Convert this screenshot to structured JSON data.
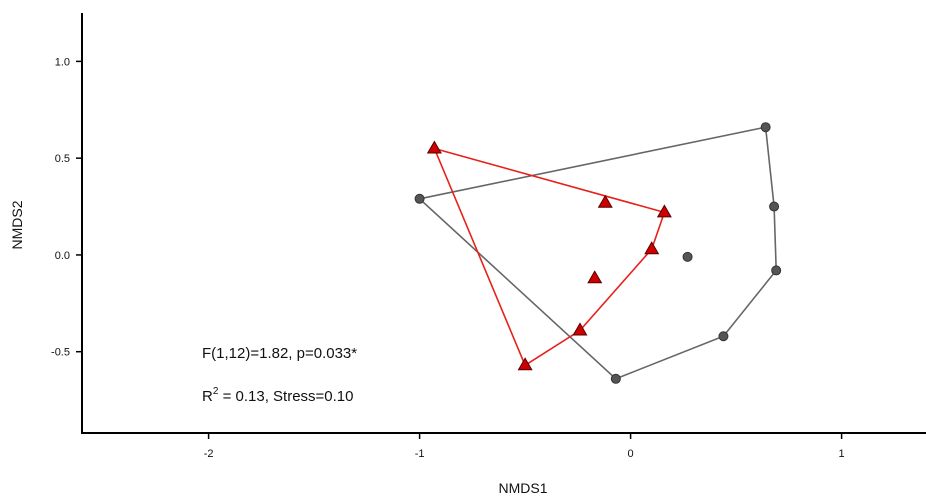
{
  "chart_data": {
    "type": "scatter",
    "title": "",
    "xlabel": "NMDS1",
    "ylabel": "NMDS2",
    "xlim": [
      -2.6,
      1.4
    ],
    "ylim": [
      -0.92,
      1.25
    ],
    "xticks": [
      -2,
      -1,
      0,
      1
    ],
    "yticks": [
      -0.5,
      0.0,
      0.5,
      1.0
    ],
    "xtick_labels": [
      "-2",
      "-1",
      "0",
      "1"
    ],
    "ytick_labels": [
      "-0.5",
      "0.0",
      "0.5",
      "1.0"
    ],
    "grid": false,
    "series": [
      {
        "marker": "circle",
        "color": "#666666",
        "fill": "#555555",
        "points": [
          {
            "x": -1.0,
            "y": 0.29
          },
          {
            "x": 0.64,
            "y": 0.66
          },
          {
            "x": 0.68,
            "y": 0.25
          },
          {
            "x": 0.69,
            "y": -0.08
          },
          {
            "x": 0.44,
            "y": -0.42
          },
          {
            "x": -0.07,
            "y": -0.64
          },
          {
            "x": 0.27,
            "y": -0.01
          }
        ],
        "hull": [
          {
            "x": -1.0,
            "y": 0.29
          },
          {
            "x": 0.64,
            "y": 0.66
          },
          {
            "x": 0.68,
            "y": 0.25
          },
          {
            "x": 0.69,
            "y": -0.08
          },
          {
            "x": 0.44,
            "y": -0.42
          },
          {
            "x": -0.07,
            "y": -0.64
          }
        ]
      },
      {
        "marker": "triangle",
        "color": "#e8201a",
        "fill": "#cc0000",
        "points": [
          {
            "x": -0.93,
            "y": 0.55
          },
          {
            "x": 0.16,
            "y": 0.22
          },
          {
            "x": -0.12,
            "y": 0.27
          },
          {
            "x": 0.1,
            "y": 0.03
          },
          {
            "x": -0.17,
            "y": -0.12
          },
          {
            "x": -0.24,
            "y": -0.39
          },
          {
            "x": -0.5,
            "y": -0.57
          }
        ],
        "hull": [
          {
            "x": -0.93,
            "y": 0.55
          },
          {
            "x": 0.16,
            "y": 0.22
          },
          {
            "x": 0.1,
            "y": 0.03
          },
          {
            "x": -0.24,
            "y": -0.39
          },
          {
            "x": -0.5,
            "y": -0.57
          }
        ]
      }
    ],
    "annotations": {
      "stat_line": "F(1,12)=1.82, p=0.033*",
      "r_prefix": "R",
      "r_sup": "2",
      "r_rest": " = 0.13, Stress=0.10"
    }
  }
}
